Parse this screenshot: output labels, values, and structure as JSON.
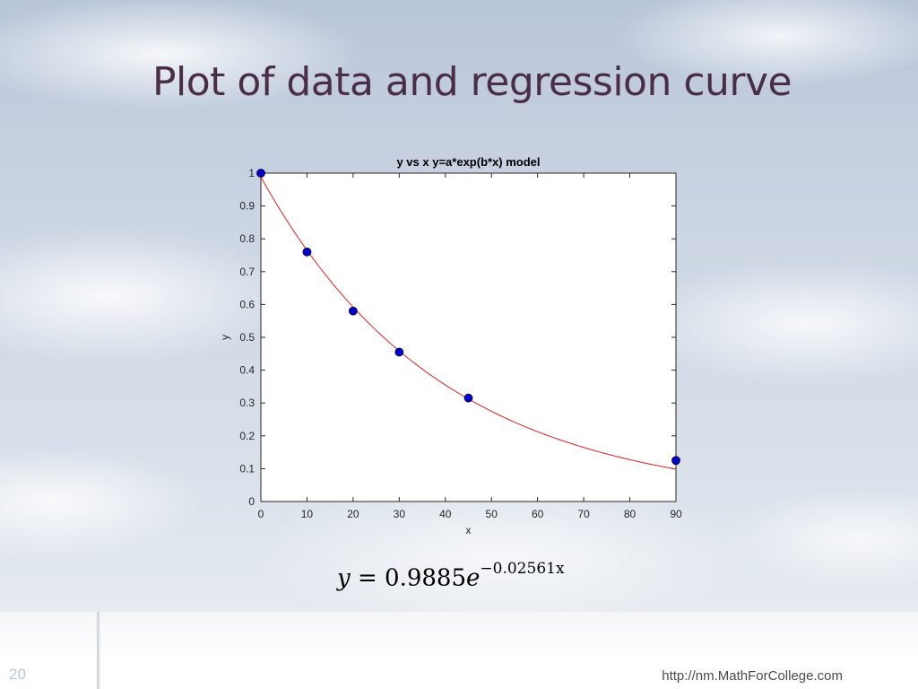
{
  "slide": {
    "title": "Plot of data and regression curve",
    "number": "20",
    "url": "http://nm.MathForCollege.com",
    "equation": {
      "lhs": "y",
      "equals": "=",
      "coefficient": "0.9885",
      "base": "e",
      "exponent": "−0.02561x"
    }
  },
  "colors": {
    "title": "#4a2e48",
    "marker": "#0000cc",
    "curve": "#e02020"
  },
  "chart_data": {
    "type": "scatter",
    "title": "y vs x y=a*exp(b*x) model",
    "xlabel": "x",
    "ylabel": "y",
    "xlim": [
      0,
      90
    ],
    "ylim": [
      0,
      1
    ],
    "xticks": [
      0,
      10,
      20,
      30,
      40,
      50,
      60,
      70,
      80,
      90
    ],
    "yticks": [
      0,
      0.1,
      0.2,
      0.3,
      0.4,
      0.5,
      0.6,
      0.7,
      0.8,
      0.9,
      1
    ],
    "grid": false,
    "series": [
      {
        "type": "scatter",
        "x": [
          0,
          10,
          20,
          30,
          45,
          90
        ],
        "y": [
          1.0,
          0.76,
          0.58,
          0.455,
          0.315,
          0.125
        ]
      },
      {
        "type": "line",
        "model": {
          "a": 0.9885,
          "b": -0.02561
        }
      }
    ]
  }
}
